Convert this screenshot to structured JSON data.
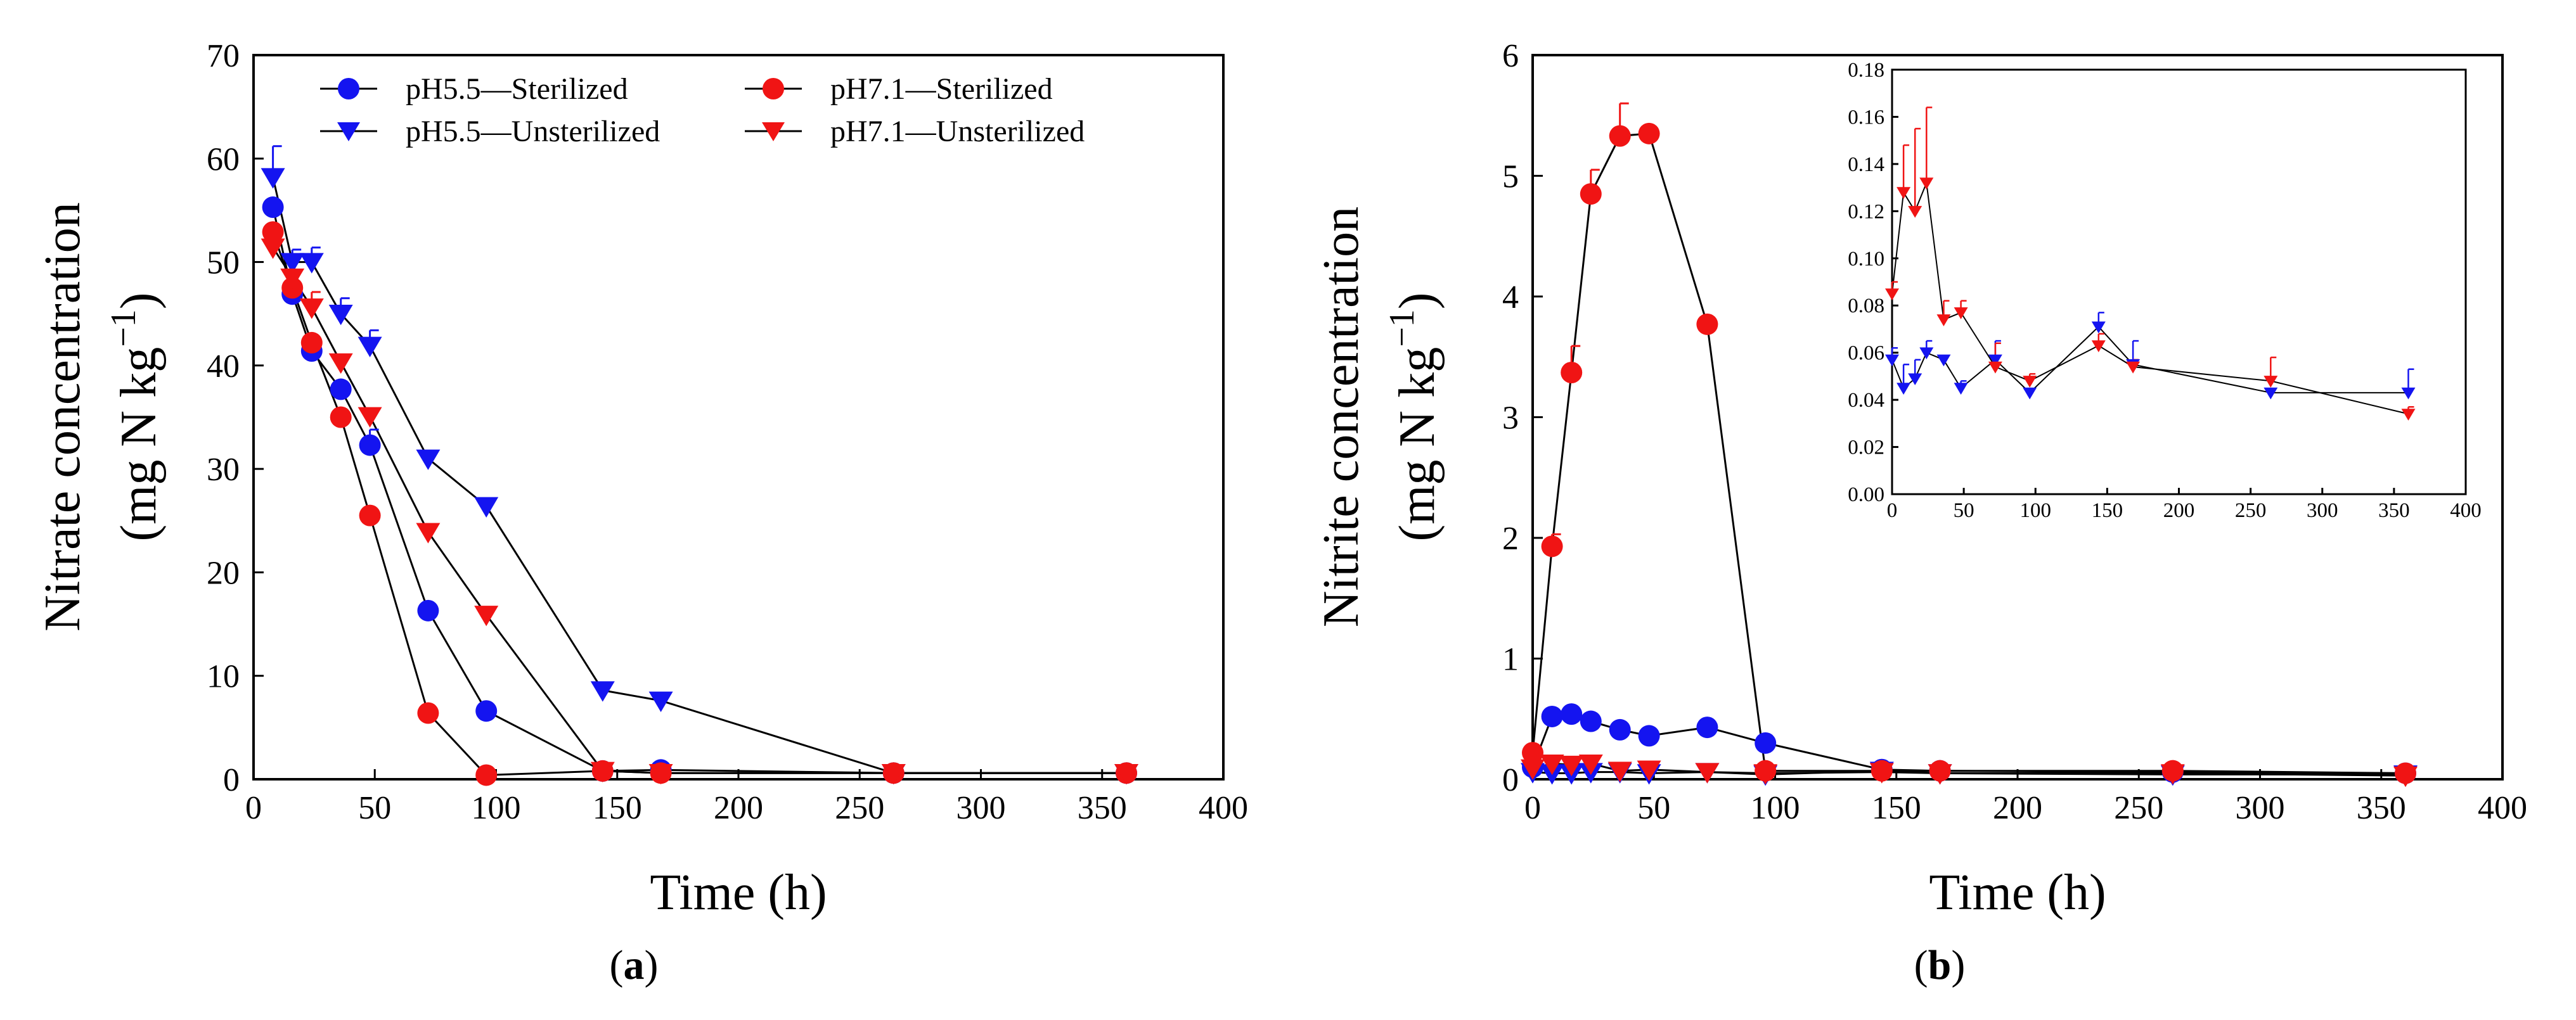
{
  "figure": {
    "panel_a_label": "a",
    "panel_b_label": "b"
  },
  "colors": {
    "blue": "#1414f0",
    "red": "#f01414",
    "axis": "#000000",
    "line": "#000000"
  },
  "legend": {
    "items": [
      {
        "label": "pH5.5—Sterilized",
        "color": "#1414f0",
        "marker": "circle"
      },
      {
        "label": "pH5.5—Unsterilized",
        "color": "#1414f0",
        "marker": "triangle-down"
      },
      {
        "label": "pH7.1—Sterilized",
        "color": "#f01414",
        "marker": "circle"
      },
      {
        "label": "pH7.1—Unsterilized",
        "color": "#f01414",
        "marker": "triangle-down"
      }
    ]
  },
  "chart_data": [
    {
      "id": "a",
      "type": "line",
      "title": "",
      "xlabel": "Time (h)",
      "ylabel_line1": "Nitrate concentration",
      "ylabel_line2_prefix": "(mg N kg",
      "ylabel_sup": "−1",
      "ylabel_line2_suffix": ")",
      "xlim": [
        0,
        400
      ],
      "ylim": [
        0,
        70
      ],
      "xticks": [
        "0",
        "50",
        "100",
        "150",
        "200",
        "250",
        "300",
        "350",
        "400"
      ],
      "yticks": [
        "0",
        "10",
        "20",
        "30",
        "40",
        "50",
        "60",
        "70"
      ],
      "series": [
        {
          "name": "pH5.5—Sterilized",
          "color": "#1414f0",
          "marker": "circle",
          "x": [
            8,
            16,
            24,
            36,
            48,
            72,
            96,
            144,
            168,
            264,
            360
          ],
          "y": [
            55.3,
            46.9,
            41.4,
            37.7,
            32.3,
            16.3,
            6.6,
            0.8,
            0.9,
            0.6,
            0.6
          ],
          "err": [
            0,
            0,
            1.2,
            0,
            1.5,
            0,
            0,
            0,
            0,
            0,
            0
          ]
        },
        {
          "name": "pH5.5—Unsterilized",
          "color": "#1414f0",
          "marker": "triangle-down",
          "x": [
            8,
            16,
            24,
            36,
            48,
            72,
            96,
            144,
            168,
            264,
            360
          ],
          "y": [
            58.2,
            50.0,
            50.0,
            45.0,
            41.9,
            31.0,
            26.4,
            8.6,
            7.6,
            0.6,
            0.6
          ],
          "err": [
            3.0,
            1.2,
            1.4,
            1.5,
            1.5,
            0.5,
            0.5,
            0.5,
            0.6,
            0,
            0
          ]
        },
        {
          "name": "pH7.1—Sterilized",
          "color": "#f01414",
          "marker": "circle",
          "x": [
            8,
            16,
            24,
            36,
            48,
            72,
            96,
            144,
            168,
            264,
            360
          ],
          "y": [
            52.9,
            47.5,
            42.2,
            35.0,
            25.5,
            6.4,
            0.4,
            0.8,
            0.6,
            0.6,
            0.6
          ],
          "err": [
            0,
            0,
            0,
            0,
            0,
            0,
            0,
            0,
            0,
            0,
            0
          ]
        },
        {
          "name": "pH7.1—Unsterilized",
          "color": "#f01414",
          "marker": "triangle-down",
          "x": [
            8,
            16,
            24,
            36,
            48,
            72,
            96,
            144,
            168,
            264,
            360
          ],
          "y": [
            51.4,
            48.5,
            45.6,
            40.3,
            35.1,
            23.9,
            15.9,
            0.8,
            0.6,
            0.6,
            0.6
          ],
          "err": [
            0,
            0,
            1.5,
            0,
            0,
            0,
            0,
            0,
            0,
            0,
            0
          ]
        }
      ]
    },
    {
      "id": "b",
      "type": "line",
      "title": "",
      "xlabel": "Time (h)",
      "ylabel_line1": "Nitrite concentration",
      "ylabel_line2_prefix": "(mg N kg",
      "ylabel_sup": "−1",
      "ylabel_line2_suffix": ")",
      "xlim": [
        0,
        400
      ],
      "ylim": [
        0,
        6
      ],
      "xticks": [
        "0",
        "50",
        "100",
        "150",
        "200",
        "250",
        "300",
        "350",
        "400"
      ],
      "yticks": [
        "0",
        "1",
        "2",
        "3",
        "4",
        "5",
        "6"
      ],
      "series": [
        {
          "name": "pH5.5—Sterilized",
          "color": "#1414f0",
          "marker": "circle",
          "x": [
            0,
            8,
            16,
            24,
            36,
            48,
            72,
            96,
            144,
            168,
            264,
            360
          ],
          "y": [
            0.1,
            0.52,
            0.54,
            0.48,
            0.41,
            0.36,
            0.43,
            0.3,
            0.08,
            0.07,
            0.06,
            0.05
          ],
          "err": [
            0,
            0,
            0,
            0,
            0,
            0,
            0,
            0,
            0,
            0,
            0,
            0
          ]
        },
        {
          "name": "pH5.5—Unsterilized",
          "color": "#1414f0",
          "marker": "triangle-down",
          "x": [
            0,
            8,
            16,
            24,
            36,
            48,
            72,
            96,
            144,
            168,
            264,
            360
          ],
          "y": [
            0.06,
            0.05,
            0.05,
            0.06,
            0.06,
            0.05,
            0.06,
            0.04,
            0.07,
            0.05,
            0.04,
            0.04
          ],
          "err": [
            0,
            0,
            0,
            0,
            0,
            0,
            0,
            0,
            0,
            0,
            0,
            0
          ]
        },
        {
          "name": "pH7.1—Sterilized",
          "color": "#f01414",
          "marker": "circle",
          "x": [
            0,
            8,
            16,
            24,
            36,
            48,
            72,
            96,
            144,
            168,
            264,
            360
          ],
          "y": [
            0.22,
            1.93,
            3.37,
            4.85,
            5.33,
            5.35,
            3.77,
            0.07,
            0.07,
            0.07,
            0.07,
            0.05
          ],
          "err": [
            0,
            0.1,
            0.22,
            0.2,
            0.27,
            0,
            0,
            0,
            0,
            0,
            0,
            0
          ]
        },
        {
          "name": "pH7.1—Unsterilized",
          "color": "#f01414",
          "marker": "triangle-down",
          "x": [
            0,
            8,
            16,
            24,
            36,
            48,
            72,
            96,
            144,
            168,
            264,
            360
          ],
          "y": [
            0.09,
            0.13,
            0.12,
            0.13,
            0.07,
            0.08,
            0.06,
            0.05,
            0.06,
            0.05,
            0.05,
            0.03
          ],
          "err": [
            0,
            0,
            0,
            0,
            0,
            0,
            0,
            0,
            0,
            0,
            0,
            0
          ]
        }
      ],
      "inset": {
        "xlim": [
          0,
          400
        ],
        "ylim": [
          0,
          0.18
        ],
        "xticks": [
          "0",
          "50",
          "100",
          "150",
          "200",
          "250",
          "300",
          "350",
          "400"
        ],
        "yticks": [
          "0.00",
          "0.02",
          "0.04",
          "0.06",
          "0.08",
          "0.10",
          "0.12",
          "0.14",
          "0.16",
          "0.18"
        ],
        "series": [
          {
            "name": "pH5.5—Unsterilized",
            "color": "#1414f0",
            "marker": "triangle-down",
            "x": [
              0,
              8,
              16,
              24,
              36,
              48,
              72,
              96,
              144,
              168,
              264,
              360
            ],
            "y": [
              0.057,
              0.045,
              0.049,
              0.06,
              0.057,
              0.045,
              0.057,
              0.043,
              0.071,
              0.055,
              0.043,
              0.043
            ],
            "err": [
              0.005,
              0.01,
              0.008,
              0.005,
              0,
              0.003,
              0.008,
              0,
              0.006,
              0.01,
              0,
              0.01
            ]
          },
          {
            "name": "pH7.1—Unsterilized",
            "color": "#f01414",
            "marker": "triangle-down",
            "x": [
              0,
              8,
              16,
              24,
              36,
              48,
              72,
              96,
              144,
              168,
              264,
              360
            ],
            "y": [
              0.085,
              0.128,
              0.12,
              0.132,
              0.074,
              0.077,
              0.054,
              0.048,
              0.063,
              0.054,
              0.048,
              0.034
            ],
            "err": [
              0.005,
              0.02,
              0.035,
              0.032,
              0.008,
              0.005,
              0.01,
              0.003,
              0.005,
              0.003,
              0.01,
              0.003
            ]
          }
        ]
      }
    }
  ]
}
